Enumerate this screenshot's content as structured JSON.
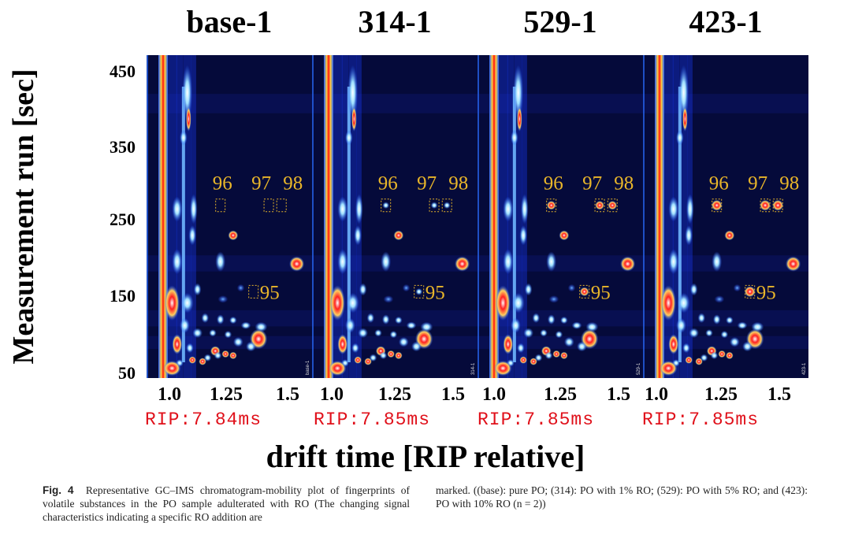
{
  "panels": [
    {
      "title": "base-1",
      "rip": "RIP:7.84ms",
      "id": "base-1",
      "intensity": 0.0
    },
    {
      "title": "314-1",
      "rip": "RIP:7.85ms",
      "id": "314-1",
      "intensity": 0.35
    },
    {
      "title": "529-1",
      "rip": "RIP:7.85ms",
      "id": "529-1",
      "intensity": 0.7
    },
    {
      "title": "423-1",
      "rip": "RIP:7.85ms",
      "id": "423-1",
      "intensity": 1.0
    }
  ],
  "y_axis": {
    "label": "Measurement run [sec]",
    "ticks": [
      "450",
      "350",
      "250",
      "150",
      "50"
    ],
    "range": [
      50,
      450
    ]
  },
  "x_axis": {
    "label": "drift time [RIP relative]",
    "ticks": [
      "1.0",
      "1.25",
      "1.5"
    ],
    "range": [
      0.9,
      1.55
    ]
  },
  "markers": [
    {
      "label": "96",
      "x": 1.19,
      "y": 270
    },
    {
      "label": "97",
      "x": 1.38,
      "y": 270
    },
    {
      "label": "98",
      "x": 1.43,
      "y": 270
    },
    {
      "label": "95",
      "x": 1.32,
      "y": 155
    }
  ],
  "caption": {
    "fig_label": "Fig. 4",
    "left_text": "Representative GC–IMS chromatogram-mobility plot of fingerprints of volatile substances in the PO sample adulterated with RO (The changing signal characteristics indicating a specific RO addition are",
    "right_text": "marked. ((base): pure PO; (314): PO with 1% RO; (529): PO with 5% RO; and (423): PO with 10% RO (n = 2))"
  },
  "colors": {
    "background": "#050a3a",
    "signal_low": "#1f5cff",
    "signal_mid": "#8fd0ff",
    "signal_high": "#ff1a1a",
    "annotation": "#e8b52a",
    "rip_text": "#e0101a"
  }
}
